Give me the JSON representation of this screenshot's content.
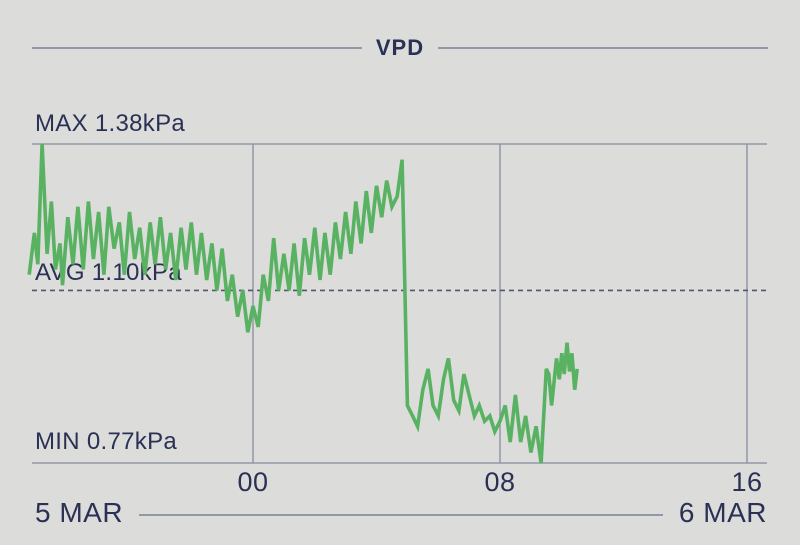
{
  "title": "VPD",
  "colors": {
    "background": "#dcdcdb",
    "text": "#2a3154",
    "rule": "#9298a8",
    "grid": "#8d93a3",
    "avg_dash": "#4f566b",
    "series": "#59b262"
  },
  "labels": {
    "max": "MAX 1.38kPa",
    "avg": "AVG 1.10kPa",
    "min": "MIN 0.77kPa",
    "start_date": "5 MAR",
    "end_date": "6 MAR"
  },
  "chart_data": {
    "type": "line",
    "title": "VPD",
    "unit": "kPa",
    "max_value": 1.38,
    "avg_value": 1.1,
    "min_value": 0.77,
    "y_domain": [
      0.77,
      1.38
    ],
    "x_domain_hours": [
      -7.25,
      16.65
    ],
    "x_ticks": [
      {
        "label": "00",
        "hour": 0
      },
      {
        "label": "08",
        "hour": 8
      },
      {
        "label": "16",
        "hour": 16
      }
    ],
    "x_axis_note": "hours relative to midnight between 5 MAR and 6 MAR",
    "grid": "vertical-gridlines-plus-max-min-horizontals",
    "legend": "none",
    "avg_line_style": "dashed",
    "series": [
      {
        "name": "VPD",
        "color": "#59b262",
        "points": [
          [
            -7.25,
            1.13
          ],
          [
            -7.08,
            1.21
          ],
          [
            -6.97,
            1.15
          ],
          [
            -6.83,
            1.38
          ],
          [
            -6.67,
            1.17
          ],
          [
            -6.53,
            1.27
          ],
          [
            -6.4,
            1.14
          ],
          [
            -6.25,
            1.19
          ],
          [
            -6.17,
            1.11
          ],
          [
            -6.0,
            1.24
          ],
          [
            -5.83,
            1.15
          ],
          [
            -5.67,
            1.26
          ],
          [
            -5.5,
            1.14
          ],
          [
            -5.33,
            1.27
          ],
          [
            -5.17,
            1.16
          ],
          [
            -5.0,
            1.25
          ],
          [
            -4.83,
            1.13
          ],
          [
            -4.67,
            1.26
          ],
          [
            -4.5,
            1.18
          ],
          [
            -4.33,
            1.23
          ],
          [
            -4.17,
            1.13
          ],
          [
            -4.0,
            1.25
          ],
          [
            -3.83,
            1.16
          ],
          [
            -3.67,
            1.22
          ],
          [
            -3.5,
            1.13
          ],
          [
            -3.33,
            1.23
          ],
          [
            -3.17,
            1.15
          ],
          [
            -3.0,
            1.24
          ],
          [
            -2.83,
            1.14
          ],
          [
            -2.67,
            1.21
          ],
          [
            -2.5,
            1.12
          ],
          [
            -2.33,
            1.22
          ],
          [
            -2.17,
            1.14
          ],
          [
            -2.0,
            1.23
          ],
          [
            -1.83,
            1.13
          ],
          [
            -1.67,
            1.21
          ],
          [
            -1.5,
            1.12
          ],
          [
            -1.33,
            1.19
          ],
          [
            -1.17,
            1.1
          ],
          [
            -1.0,
            1.18
          ],
          [
            -0.83,
            1.08
          ],
          [
            -0.67,
            1.13
          ],
          [
            -0.5,
            1.05
          ],
          [
            -0.33,
            1.1
          ],
          [
            -0.17,
            1.02
          ],
          [
            0.0,
            1.07
          ],
          [
            0.17,
            1.03
          ],
          [
            0.33,
            1.13
          ],
          [
            0.5,
            1.08
          ],
          [
            0.67,
            1.2
          ],
          [
            0.83,
            1.1
          ],
          [
            1.0,
            1.17
          ],
          [
            1.17,
            1.1
          ],
          [
            1.33,
            1.19
          ],
          [
            1.5,
            1.09
          ],
          [
            1.67,
            1.2
          ],
          [
            1.83,
            1.13
          ],
          [
            2.0,
            1.22
          ],
          [
            2.17,
            1.12
          ],
          [
            2.33,
            1.21
          ],
          [
            2.5,
            1.13
          ],
          [
            2.67,
            1.23
          ],
          [
            2.83,
            1.16
          ],
          [
            3.0,
            1.25
          ],
          [
            3.17,
            1.17
          ],
          [
            3.33,
            1.27
          ],
          [
            3.5,
            1.19
          ],
          [
            3.67,
            1.29
          ],
          [
            3.83,
            1.21
          ],
          [
            4.0,
            1.3
          ],
          [
            4.17,
            1.24
          ],
          [
            4.33,
            1.31
          ],
          [
            4.5,
            1.26
          ],
          [
            4.67,
            1.28
          ],
          [
            4.83,
            1.35
          ],
          [
            5.0,
            0.88
          ],
          [
            5.17,
            0.86
          ],
          [
            5.33,
            0.84
          ],
          [
            5.5,
            0.91
          ],
          [
            5.67,
            0.95
          ],
          [
            5.83,
            0.88
          ],
          [
            6.0,
            0.86
          ],
          [
            6.17,
            0.93
          ],
          [
            6.33,
            0.97
          ],
          [
            6.5,
            0.89
          ],
          [
            6.67,
            0.87
          ],
          [
            6.83,
            0.94
          ],
          [
            7.0,
            0.9
          ],
          [
            7.17,
            0.86
          ],
          [
            7.33,
            0.88
          ],
          [
            7.5,
            0.85
          ],
          [
            7.67,
            0.86
          ],
          [
            7.83,
            0.83
          ],
          [
            8.0,
            0.85
          ],
          [
            8.17,
            0.88
          ],
          [
            8.33,
            0.81
          ],
          [
            8.5,
            0.9
          ],
          [
            8.67,
            0.81
          ],
          [
            8.83,
            0.86
          ],
          [
            9.0,
            0.79
          ],
          [
            9.17,
            0.84
          ],
          [
            9.33,
            0.77
          ],
          [
            9.5,
            0.95
          ],
          [
            9.58,
            0.94
          ],
          [
            9.67,
            0.88
          ],
          [
            9.83,
            0.97
          ],
          [
            9.92,
            0.93
          ],
          [
            10.0,
            0.98
          ],
          [
            10.08,
            0.94
          ],
          [
            10.17,
            1.0
          ],
          [
            10.25,
            0.945
          ],
          [
            10.33,
            0.98
          ],
          [
            10.42,
            0.91
          ],
          [
            10.5,
            0.95
          ]
        ]
      }
    ]
  }
}
